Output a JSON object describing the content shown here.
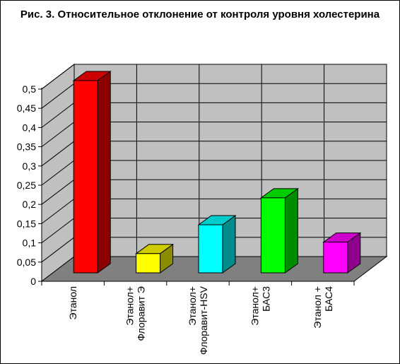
{
  "chart_data": {
    "type": "bar",
    "title": "Рис. 3. Относительное отклонение от контроля уровня холестерина",
    "categories": [
      [
        "Этанол"
      ],
      [
        "Этанол+",
        "Флоравит Э"
      ],
      [
        "Этанол+",
        "Флоравит-HSV"
      ],
      [
        "Этанол+",
        "БАС3"
      ],
      [
        "Этанол +",
        "БАС4"
      ]
    ],
    "values": [
      0.5,
      0.05,
      0.125,
      0.195,
      0.08
    ],
    "colors": [
      "#ff0000",
      "#ffff00",
      "#00ffff",
      "#00ff00",
      "#ff00ff"
    ],
    "yticks": [
      "0",
      "0,05",
      "0,1",
      "0,15",
      "0,2",
      "0,25",
      "0,3",
      "0,35",
      "0,4",
      "0,45",
      "0,5"
    ],
    "ylim": [
      0,
      0.5
    ],
    "grid": true,
    "legend": "none",
    "three_d": true
  }
}
